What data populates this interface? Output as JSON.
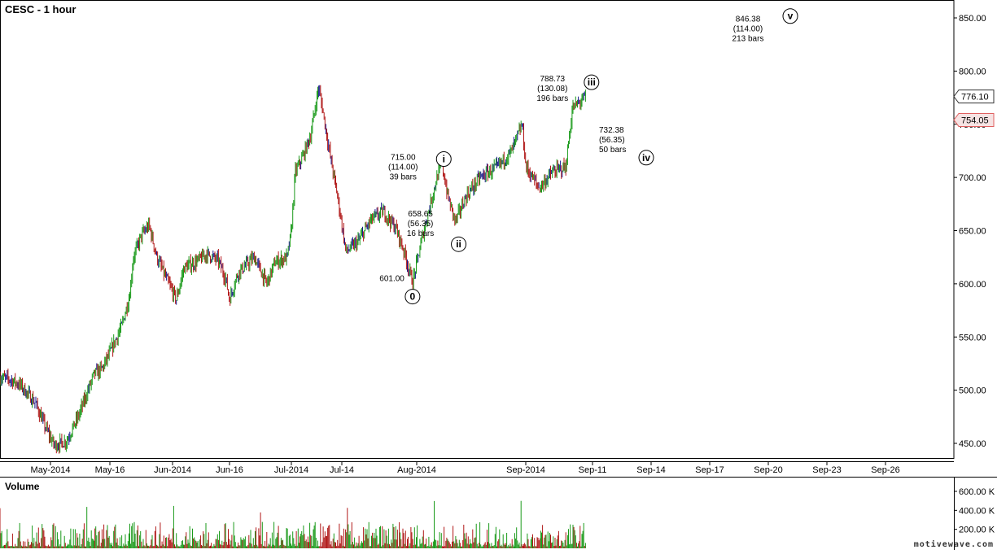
{
  "title": "CESC - 1 hour",
  "volume_title": "Volume",
  "watermark": "motivewave.com",
  "colors": {
    "up": "#1a9a1a",
    "down": "#b01818",
    "neutral": "#1a1a8c",
    "current_price": "#333333",
    "last_close": "#e06060",
    "grid": "#000000"
  },
  "chart_data": [
    {
      "type": "line",
      "title": "CESC - 1 hour",
      "y_ticks": [
        450,
        500,
        550,
        600,
        650,
        700,
        750,
        800,
        850
      ],
      "y_tick_labels": [
        "450.00",
        "500.00",
        "550.00",
        "600.00",
        "650.00",
        "700.00",
        "750.00",
        "800.00",
        "850.00"
      ],
      "ylim": [
        435,
        862
      ],
      "x_ticks": [
        "May-2014",
        "May-16",
        "Jun-2014",
        "Jun-16",
        "Jul-2014",
        "Jul-14",
        "Aug-2014",
        "Sep-2014",
        "Sep-11",
        "Sep-14",
        "Sep-17",
        "Sep-20",
        "Sep-23",
        "Sep-26"
      ],
      "price_path": [
        {
          "date": "2014-04-21",
          "price": 512
        },
        {
          "date": "2014-04-23",
          "price": 510
        },
        {
          "date": "2014-04-25",
          "price": 505
        },
        {
          "date": "2014-04-28",
          "price": 488
        },
        {
          "date": "2014-04-30",
          "price": 465
        },
        {
          "date": "2014-05-02",
          "price": 448
        },
        {
          "date": "2014-05-05",
          "price": 452
        },
        {
          "date": "2014-05-08",
          "price": 475
        },
        {
          "date": "2014-05-12",
          "price": 515
        },
        {
          "date": "2014-05-14",
          "price": 520
        },
        {
          "date": "2014-05-16",
          "price": 535
        },
        {
          "date": "2014-05-19",
          "price": 560
        },
        {
          "date": "2014-05-21",
          "price": 588
        },
        {
          "date": "2014-05-22",
          "price": 625
        },
        {
          "date": "2014-05-24",
          "price": 645
        },
        {
          "date": "2014-05-26",
          "price": 655
        },
        {
          "date": "2014-05-28",
          "price": 625
        },
        {
          "date": "2014-05-30",
          "price": 608
        },
        {
          "date": "2014-06-02",
          "price": 585
        },
        {
          "date": "2014-06-04",
          "price": 615
        },
        {
          "date": "2014-06-07",
          "price": 620
        },
        {
          "date": "2014-06-10",
          "price": 628
        },
        {
          "date": "2014-06-13",
          "price": 622
        },
        {
          "date": "2014-06-15",
          "price": 605
        },
        {
          "date": "2014-06-16",
          "price": 585
        },
        {
          "date": "2014-06-18",
          "price": 610
        },
        {
          "date": "2014-06-22",
          "price": 625
        },
        {
          "date": "2014-06-25",
          "price": 600
        },
        {
          "date": "2014-06-27",
          "price": 620
        },
        {
          "date": "2014-06-30",
          "price": 625
        },
        {
          "date": "2014-07-01",
          "price": 650
        },
        {
          "date": "2014-07-02",
          "price": 705
        },
        {
          "date": "2014-07-04",
          "price": 720
        },
        {
          "date": "2014-07-06",
          "price": 740
        },
        {
          "date": "2014-07-08",
          "price": 785
        },
        {
          "date": "2014-07-09",
          "price": 765
        },
        {
          "date": "2014-07-11",
          "price": 720
        },
        {
          "date": "2014-07-13",
          "price": 680
        },
        {
          "date": "2014-07-15",
          "price": 630
        },
        {
          "date": "2014-07-18",
          "price": 640
        },
        {
          "date": "2014-07-21",
          "price": 660
        },
        {
          "date": "2014-07-24",
          "price": 668
        },
        {
          "date": "2014-07-27",
          "price": 652
        },
        {
          "date": "2014-07-29",
          "price": 630
        },
        {
          "date": "2014-07-31",
          "price": 601
        },
        {
          "date": "2014-08-03",
          "price": 650
        },
        {
          "date": "2014-08-06",
          "price": 690
        },
        {
          "date": "2014-08-08",
          "price": 715
        },
        {
          "date": "2014-08-10",
          "price": 680
        },
        {
          "date": "2014-08-12",
          "price": 658.65
        },
        {
          "date": "2014-08-15",
          "price": 682
        },
        {
          "date": "2014-08-19",
          "price": 700
        },
        {
          "date": "2014-08-24",
          "price": 710
        },
        {
          "date": "2014-08-28",
          "price": 725
        },
        {
          "date": "2014-08-31",
          "price": 750
        },
        {
          "date": "2014-09-01",
          "price": 710
        },
        {
          "date": "2014-09-03",
          "price": 690
        },
        {
          "date": "2014-09-05",
          "price": 705
        },
        {
          "date": "2014-09-07",
          "price": 710
        },
        {
          "date": "2014-09-08",
          "price": 765
        },
        {
          "date": "2014-09-10",
          "price": 776
        }
      ],
      "last_price": 776.1,
      "last_price_label": "776.10",
      "last_close": 754.05,
      "last_close_label": "754.05",
      "wave_labels": [
        {
          "wave": "0",
          "date": "2014-07-31",
          "price": 601.0,
          "lines": [
            "601.00"
          ]
        },
        {
          "wave": "i",
          "date": "2014-08-08",
          "price": 715.0,
          "lines": [
            "715.00",
            "(114.00)",
            "39 bars"
          ]
        },
        {
          "wave": "ii",
          "date": "2014-08-12",
          "price": 658.65,
          "lines": [
            "658.65",
            "(56.35)",
            "16 bars"
          ]
        },
        {
          "wave": "iii",
          "date": "2014-09-10",
          "price": 788.73,
          "lines": [
            "788.73",
            "(130.08)",
            "196 bars"
          ]
        },
        {
          "wave": "iv",
          "date": "2014-09-13",
          "price": 732.38,
          "lines": [
            "732.38",
            "(56.35)",
            "50 bars"
          ]
        },
        {
          "wave": "v",
          "date": "2014-09-21",
          "price": 846.38,
          "lines": [
            "846.38",
            "(114.00)",
            "213 bars"
          ]
        }
      ]
    },
    {
      "type": "bar",
      "title": "Volume",
      "y_ticks": [
        200000,
        400000,
        600000
      ],
      "y_tick_labels": [
        "200.00 K",
        "400.00 K",
        "600.00 K"
      ],
      "ylim": [
        0,
        680000
      ],
      "approx_peak_volume": 570000
    }
  ]
}
